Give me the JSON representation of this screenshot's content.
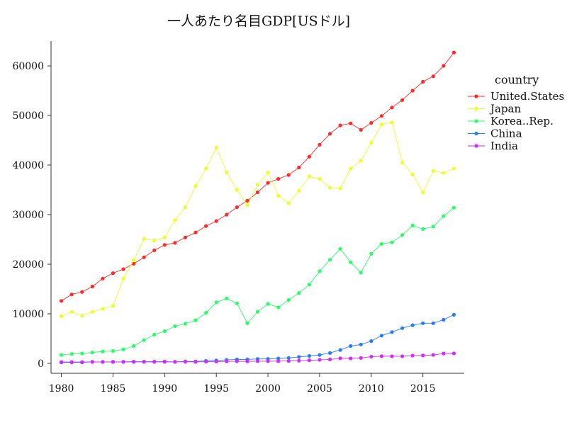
{
  "chart_data": {
    "type": "line",
    "title": "一人あたり名目GDP[USドル]",
    "xlabel": "",
    "ylabel": "",
    "xlim": [
      1979,
      2019
    ],
    "ylim": [
      -2000,
      65000
    ],
    "x_ticks": [
      1980,
      1985,
      1990,
      1995,
      2000,
      2005,
      2010,
      2015
    ],
    "y_ticks": [
      0,
      10000,
      20000,
      30000,
      40000,
      50000,
      60000
    ],
    "grid": false,
    "legend": {
      "title": "country",
      "placement": "right"
    },
    "x": [
      1980,
      1981,
      1982,
      1983,
      1984,
      1985,
      1986,
      1987,
      1988,
      1989,
      1990,
      1991,
      1992,
      1993,
      1994,
      1995,
      1996,
      1997,
      1998,
      1999,
      2000,
      2001,
      2002,
      2003,
      2004,
      2005,
      2006,
      2007,
      2008,
      2009,
      2010,
      2011,
      2012,
      2013,
      2014,
      2015,
      2016,
      2017,
      2018
    ],
    "series": [
      {
        "name": "United.States",
        "color": "#ff2a2a",
        "values": [
          12600,
          13900,
          14400,
          15500,
          17100,
          18200,
          19000,
          20100,
          21400,
          22800,
          23900,
          24300,
          25400,
          26400,
          27700,
          28700,
          30000,
          31500,
          32800,
          34500,
          36400,
          37200,
          38000,
          39500,
          41700,
          44100,
          46300,
          48000,
          48400,
          47100,
          48500,
          49900,
          51600,
          53100,
          55000,
          56800,
          57900,
          60000,
          62700
        ]
      },
      {
        "name": "Japan",
        "color": "#ecff2a",
        "values": [
          9500,
          10400,
          9600,
          10400,
          11000,
          11600,
          17100,
          20800,
          25100,
          24800,
          25400,
          28900,
          31500,
          35800,
          39300,
          43500,
          38500,
          35000,
          31900,
          36000,
          38500,
          33800,
          32300,
          34800,
          37700,
          37200,
          35400,
          35300,
          39300,
          40900,
          44500,
          48200,
          48600,
          40500,
          38100,
          34500,
          38800,
          38400,
          39300
        ]
      },
      {
        "name": "Korea..Rep.",
        "color": "#2aff6b",
        "values": [
          1700,
          1900,
          2000,
          2200,
          2400,
          2500,
          2800,
          3500,
          4700,
          5800,
          6500,
          7500,
          8000,
          8700,
          10200,
          12300,
          13100,
          12100,
          8100,
          10400,
          12000,
          11300,
          12800,
          14200,
          15900,
          18600,
          20900,
          23100,
          20400,
          18300,
          22100,
          24100,
          24400,
          25900,
          27800,
          27100,
          27600,
          29700,
          31400
        ]
      },
      {
        "name": "China",
        "color": "#2a7bff",
        "values": [
          200,
          200,
          200,
          300,
          300,
          300,
          300,
          300,
          300,
          300,
          300,
          300,
          400,
          400,
          500,
          600,
          700,
          800,
          800,
          900,
          900,
          1000,
          1100,
          1300,
          1500,
          1700,
          2100,
          2700,
          3500,
          3800,
          4500,
          5600,
          6300,
          7100,
          7700,
          8100,
          8100,
          8800,
          9800
        ]
      },
      {
        "name": "India",
        "color": "#d22aff",
        "values": [
          270,
          270,
          280,
          290,
          280,
          300,
          310,
          340,
          350,
          350,
          370,
          310,
          320,
          300,
          350,
          370,
          400,
          420,
          410,
          440,
          440,
          450,
          470,
          540,
          620,
          710,
          800,
          1030,
          1000,
          1100,
          1350,
          1450,
          1430,
          1440,
          1560,
          1590,
          1710,
          1980,
          2010
        ]
      }
    ]
  }
}
